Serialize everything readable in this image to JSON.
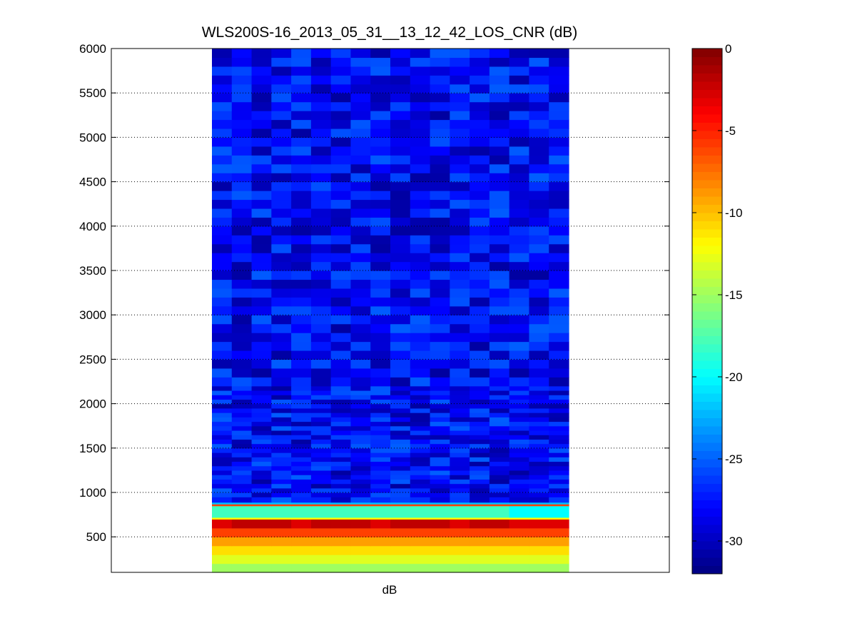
{
  "chart_data": {
    "type": "heatmap",
    "title": "WLS200S-16_2013_05_31__13_12_42_LOS_CNR (dB)",
    "xlabel": "dB",
    "ylabel": "",
    "ylim": [
      100,
      6000
    ],
    "y_ticks": [
      500,
      1000,
      1500,
      2000,
      2500,
      3000,
      3500,
      4000,
      4500,
      5000,
      5500,
      6000
    ],
    "grid": "horizontal dotted",
    "colormap": "jet",
    "colorbar": {
      "range": [
        -32,
        0
      ],
      "ticks": [
        0,
        -5,
        -10,
        -15,
        -20,
        -25,
        -30
      ]
    },
    "columns": 18,
    "y_edges": [
      100,
      200,
      300,
      400,
      500,
      600,
      700,
      720,
      850,
      870,
      890,
      950,
      1000,
      1050,
      1100,
      1150,
      1200,
      1250,
      1300,
      1350,
      1400,
      1450,
      1500,
      1550,
      1600,
      1650,
      1700,
      1750,
      1800,
      1850,
      1900,
      1950,
      2000,
      2050,
      2100,
      2150,
      2200,
      2300,
      2400,
      2500,
      2600,
      2700,
      2800,
      2900,
      3000,
      3100,
      3200,
      3300,
      3400,
      3500,
      3600,
      3700,
      3800,
      3900,
      4000,
      4100,
      4200,
      4300,
      4400,
      4500,
      4600,
      4700,
      4800,
      4900,
      5000,
      5100,
      5200,
      5300,
      5400,
      5500,
      5600,
      5700,
      5800,
      5900,
      6000
    ],
    "layers": [
      {
        "from": 100,
        "to": 200,
        "values": [
          -15,
          -15,
          -15,
          -15,
          -15,
          -15,
          -15,
          -15,
          -15,
          -15,
          -15,
          -15,
          -15,
          -15,
          -15,
          -15,
          -15,
          -15
        ]
      },
      {
        "from": 200,
        "to": 300,
        "values": [
          -13,
          -13,
          -13,
          -13,
          -13,
          -13,
          -13,
          -13,
          -13,
          -13,
          -13,
          -13,
          -13,
          -13,
          -13,
          -13,
          -13,
          -13
        ]
      },
      {
        "from": 300,
        "to": 400,
        "values": [
          -11,
          -11,
          -11,
          -11,
          -11,
          -11,
          -11,
          -11,
          -11,
          -11,
          -11,
          -11,
          -11,
          -11,
          -11,
          -11,
          -11,
          -11
        ]
      },
      {
        "from": 400,
        "to": 500,
        "values": [
          -9,
          -9,
          -9,
          -9,
          -9,
          -9,
          -9,
          -9,
          -9,
          -9,
          -9,
          -9,
          -9,
          -9,
          -9,
          -9,
          -9,
          -9
        ]
      },
      {
        "from": 500,
        "to": 600,
        "values": [
          -6,
          -6,
          -6,
          -6,
          -6,
          -6,
          -6,
          -6,
          -6,
          -6,
          -6,
          -6,
          -6,
          -6,
          -6,
          -6,
          -6,
          -6
        ]
      },
      {
        "from": 600,
        "to": 700,
        "values": [
          -3,
          -2,
          -2,
          -2,
          -3,
          -2,
          -2,
          -2,
          -3,
          -2,
          -2,
          -2,
          -3,
          -2,
          -2,
          -3,
          -3,
          -3
        ]
      },
      {
        "from": 700,
        "to": 720,
        "values": [
          -12,
          -12,
          -12,
          -12,
          -12,
          -12,
          -12,
          -12,
          -12,
          -12,
          -12,
          -12,
          -12,
          -12,
          -12,
          -12,
          -12,
          -12
        ]
      },
      {
        "from": 720,
        "to": 850,
        "values": [
          -18,
          -18,
          -18,
          -18,
          -18,
          -18,
          -18,
          -18,
          -18,
          -18,
          -18,
          -18,
          -18,
          -18,
          -18,
          -20,
          -20,
          -20
        ]
      },
      {
        "from": 850,
        "to": 870,
        "values": [
          -6,
          -6,
          -6,
          -6,
          -6,
          -6,
          -6,
          -6,
          -6,
          -6,
          -6,
          -6,
          -6,
          -6,
          -6,
          -6,
          -6,
          -6
        ]
      },
      {
        "from": 870,
        "to": 890,
        "values": [
          -22,
          -22,
          -22,
          -22,
          -22,
          -22,
          -22,
          -22,
          -22,
          -22,
          -22,
          -22,
          -22,
          -22,
          -22,
          -22,
          -22,
          -22
        ]
      }
    ],
    "noise_band": {
      "from": 890,
      "to": 6000,
      "min": -31,
      "max": -25
    }
  }
}
